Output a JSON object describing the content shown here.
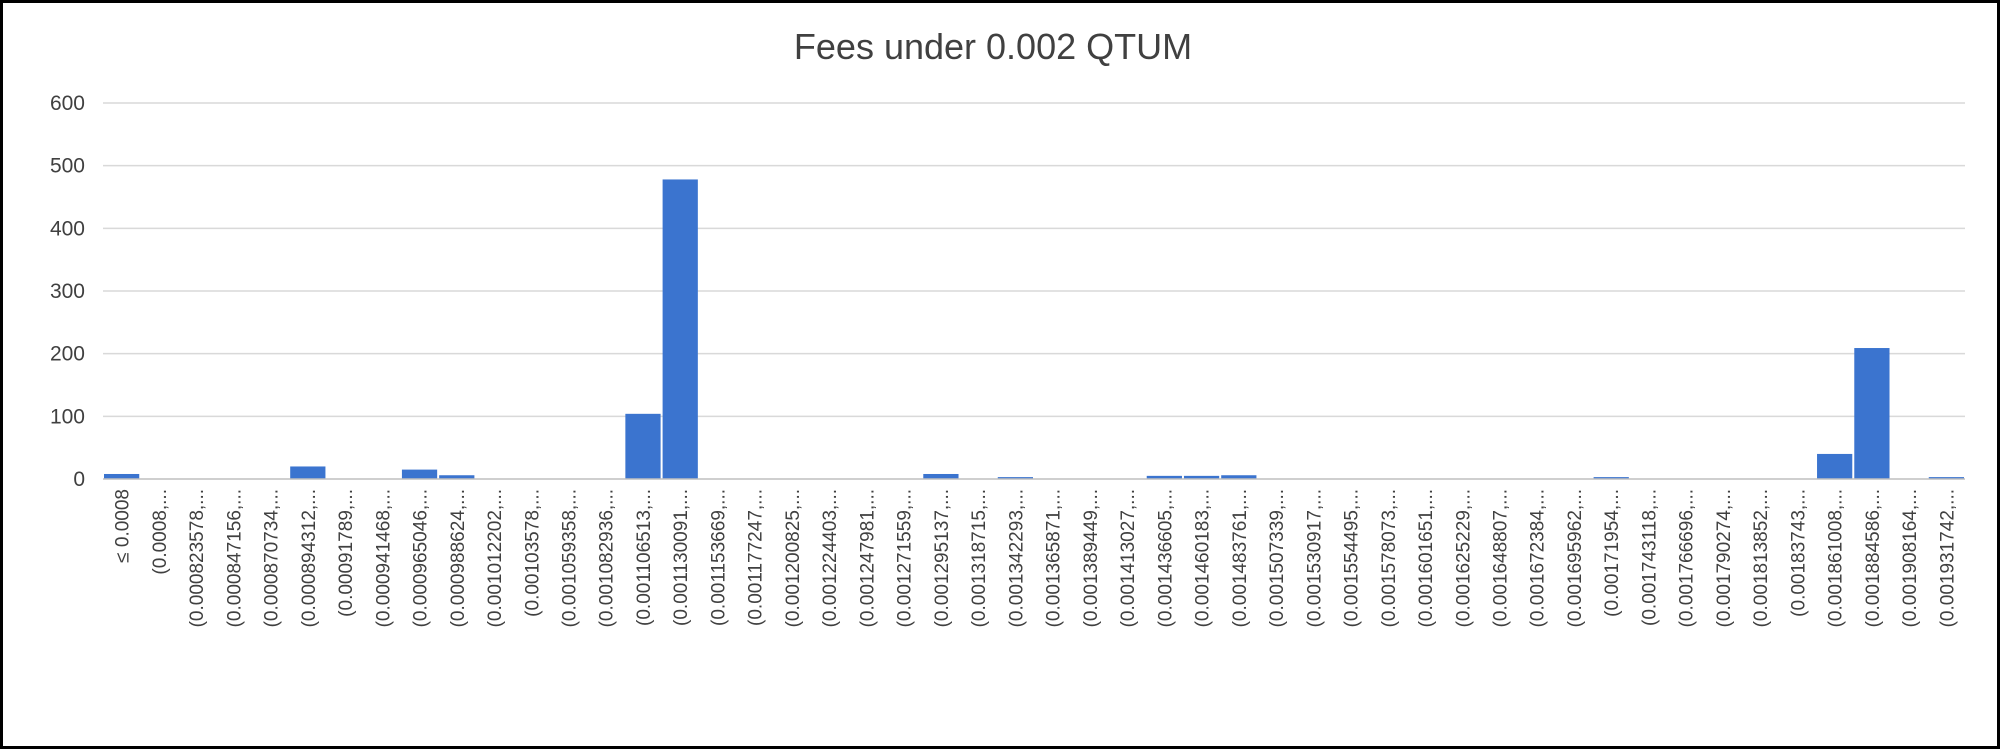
{
  "chart_data": {
    "type": "bar",
    "title": "Fees under 0.002 QTUM",
    "xlabel": "",
    "ylabel": "",
    "ylim": [
      0,
      600
    ],
    "yticks": [
      0,
      100,
      200,
      300,
      400,
      500,
      600
    ],
    "grid": true,
    "color": "#3b74cf",
    "categories": [
      "≤ 0.0008",
      "(0.0008,...",
      "(0.000823578,...",
      "(0.000847156,...",
      "(0.000870734,...",
      "(0.000894312,...",
      "(0.00091789,...",
      "(0.000941468,...",
      "(0.000965046,...",
      "(0.000988624,...",
      "(0.001012202,...",
      "(0.00103578,...",
      "(0.001059358,...",
      "(0.001082936,...",
      "(0.001106513,...",
      "(0.001130091,...",
      "(0.001153669,...",
      "(0.001177247,...",
      "(0.001200825,...",
      "(0.001224403,...",
      "(0.001247981,...",
      "(0.001271559,...",
      "(0.001295137,...",
      "(0.001318715,...",
      "(0.001342293,...",
      "(0.001365871,...",
      "(0.001389449,...",
      "(0.001413027,...",
      "(0.001436605,...",
      "(0.001460183,...",
      "(0.001483761,...",
      "(0.001507339,...",
      "(0.001530917,...",
      "(0.001554495,...",
      "(0.001578073,...",
      "(0.001601651,...",
      "(0.001625229,...",
      "(0.001648807,...",
      "(0.001672384,...",
      "(0.001695962,...",
      "(0.00171954,...",
      "(0.001743118,...",
      "(0.001766696,...",
      "(0.001790274,...",
      "(0.001813852,...",
      "(0.00183743,...",
      "(0.001861008,...",
      "(0.001884586,...",
      "(0.001908164,...",
      "(0.001931742,..."
    ],
    "values": [
      8,
      0,
      0,
      0,
      0,
      20,
      0,
      0,
      15,
      6,
      0,
      0,
      0,
      0,
      104,
      478,
      0,
      0,
      0,
      0,
      0,
      0,
      8,
      0,
      3,
      0,
      0,
      0,
      5,
      5,
      6,
      0,
      0,
      0,
      0,
      0,
      0,
      0,
      0,
      0,
      3,
      0,
      0,
      0,
      0,
      0,
      40,
      209,
      0,
      3
    ]
  }
}
